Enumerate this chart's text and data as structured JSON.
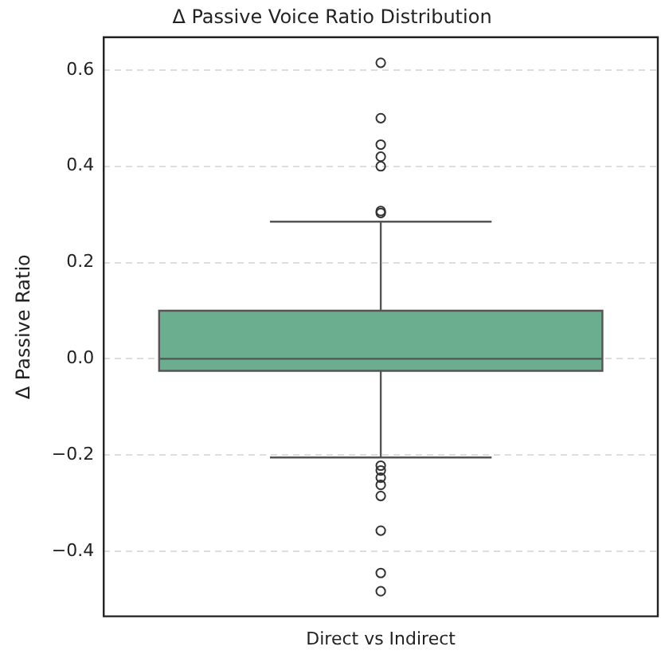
{
  "chart_data": {
    "type": "box",
    "title": "Δ Passive Voice Ratio Distribution",
    "ylabel": "Δ Passive Ratio",
    "categories": [
      "Direct vs Indirect"
    ],
    "color": "#6aae8f",
    "boxes": [
      {
        "low": -0.205,
        "q1": -0.025,
        "median": 0.0,
        "q3": 0.1,
        "high": 0.285,
        "outliers": [
          0.615,
          0.5,
          0.445,
          0.42,
          0.4,
          0.307,
          0.303,
          -0.222,
          -0.232,
          -0.247,
          -0.262,
          -0.285,
          -0.357,
          -0.445,
          -0.483
        ]
      }
    ],
    "ylim": [
      -0.535,
      0.668
    ],
    "yticks": [
      {
        "value": -0.4,
        "label": "−0.4"
      },
      {
        "value": -0.2,
        "label": "−0.2"
      },
      {
        "value": 0,
        "label": "0.0"
      },
      {
        "value": 0.2,
        "label": "0.2"
      },
      {
        "value": 0.4,
        "label": "0.4"
      },
      {
        "value": 0.6,
        "label": "0.6"
      }
    ],
    "grid": "y"
  }
}
